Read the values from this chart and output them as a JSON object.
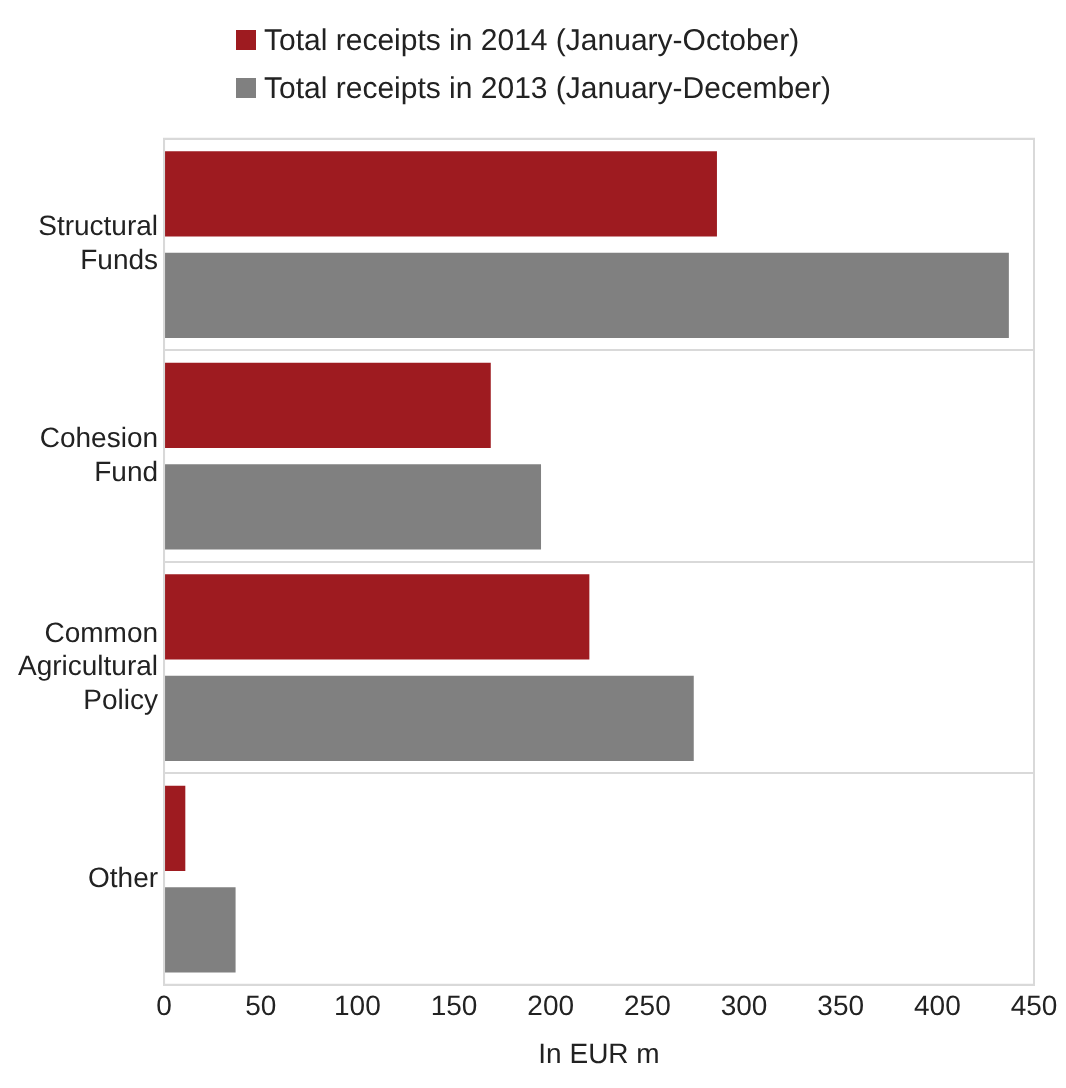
{
  "chart_data": {
    "type": "bar",
    "orientation": "horizontal",
    "xlabel": "In EUR m",
    "categories": [
      "Structural Funds",
      "Cohesion Fund",
      "Common Agricultural Policy",
      "Other"
    ],
    "series": [
      {
        "name": "Total receipts in 2014 (January-October)",
        "color": "#9e1b20",
        "values": [
          286,
          169,
          220,
          11
        ]
      },
      {
        "name": "Total receipts in 2013 (January-December)",
        "color": "#808080",
        "values": [
          437,
          195,
          274,
          37
        ]
      }
    ],
    "xlim": [
      0,
      450
    ],
    "xticks": [
      0,
      50,
      100,
      150,
      200,
      250,
      300,
      350,
      400,
      450
    ],
    "grid": "y",
    "legend": "top left"
  }
}
